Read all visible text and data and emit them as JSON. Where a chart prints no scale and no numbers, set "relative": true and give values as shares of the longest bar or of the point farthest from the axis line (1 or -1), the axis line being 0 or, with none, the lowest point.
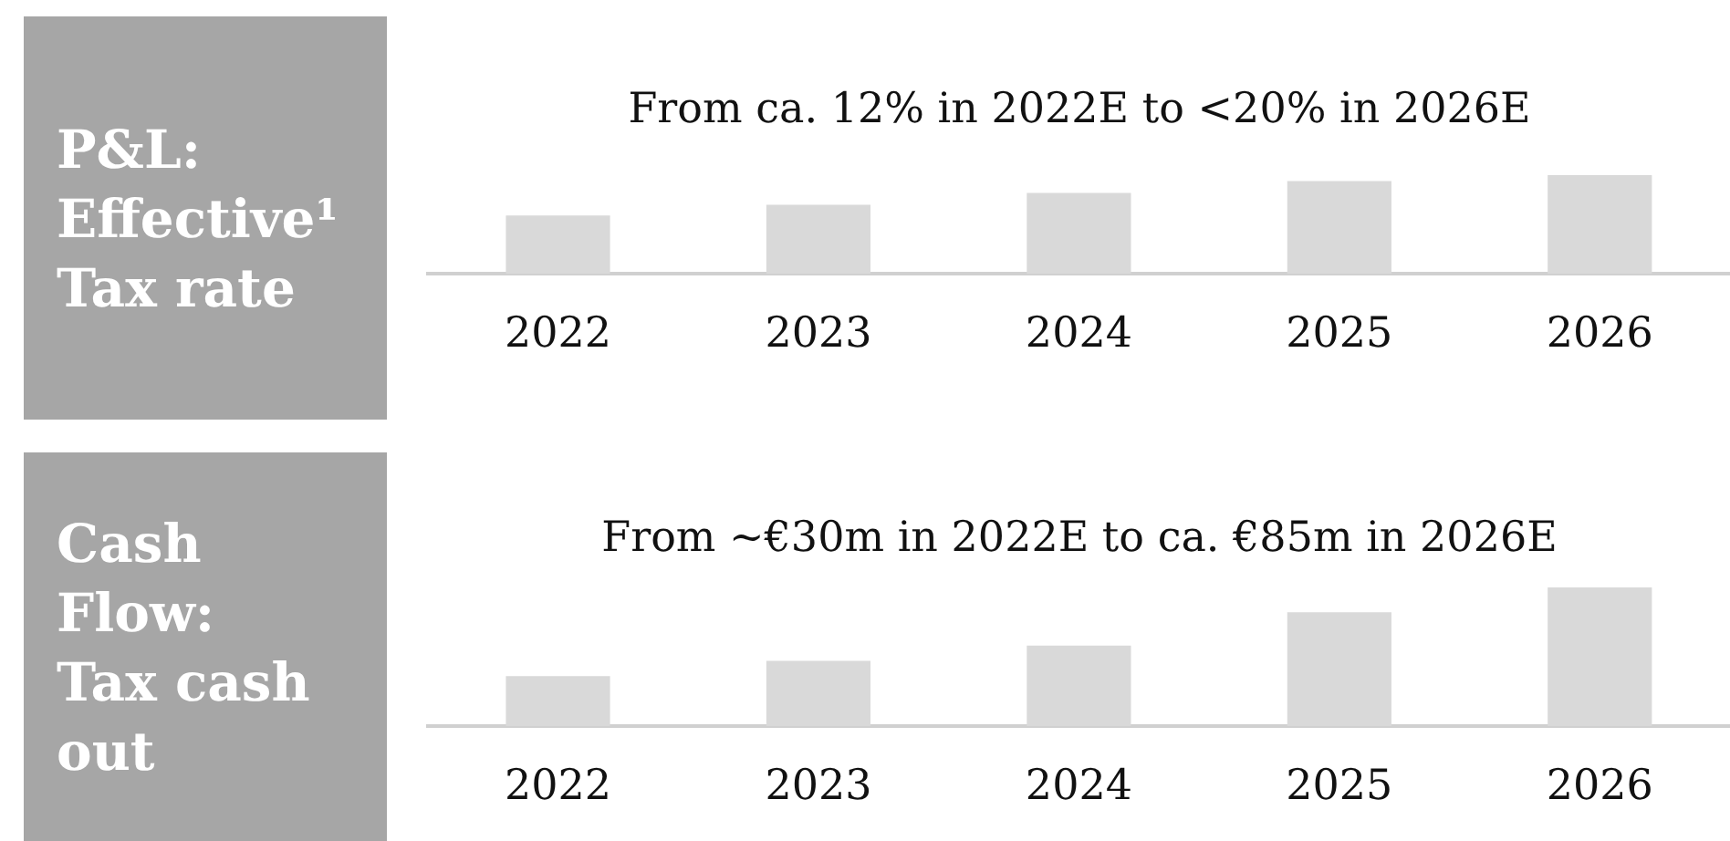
{
  "chart_data": [
    {
      "type": "bar",
      "title": "P&L: Effective¹ Tax rate",
      "subtitle": "From ca. 12% in 2022E to <20% in 2026E",
      "categories": [
        "2022",
        "2023",
        "2024",
        "2025",
        "2026"
      ],
      "values": [
        0.59,
        0.7,
        0.82,
        0.94,
        1
      ],
      "color": "#d9d9d9",
      "relative": true
    },
    {
      "type": "bar",
      "title": "Cash Flow: Tax cash out",
      "subtitle": "From ~€30m in 2022E to ca. €85m in 2026E",
      "categories": [
        "2022",
        "2023",
        "2024",
        "2025",
        "2026"
      ],
      "values": [
        0.36,
        0.47,
        0.58,
        0.82,
        1
      ],
      "color": "#d9d9d9",
      "relative": true
    }
  ]
}
